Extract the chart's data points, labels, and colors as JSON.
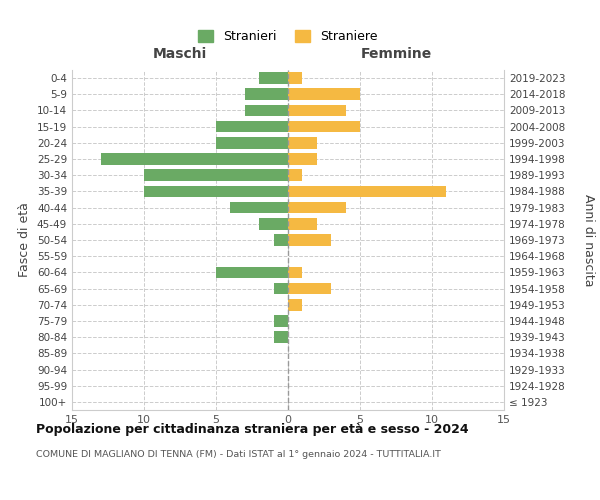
{
  "age_groups": [
    "100+",
    "95-99",
    "90-94",
    "85-89",
    "80-84",
    "75-79",
    "70-74",
    "65-69",
    "60-64",
    "55-59",
    "50-54",
    "45-49",
    "40-44",
    "35-39",
    "30-34",
    "25-29",
    "20-24",
    "15-19",
    "10-14",
    "5-9",
    "0-4"
  ],
  "birth_years": [
    "≤ 1923",
    "1924-1928",
    "1929-1933",
    "1934-1938",
    "1939-1943",
    "1944-1948",
    "1949-1953",
    "1954-1958",
    "1959-1963",
    "1964-1968",
    "1969-1973",
    "1974-1978",
    "1979-1983",
    "1984-1988",
    "1989-1993",
    "1994-1998",
    "1999-2003",
    "2004-2008",
    "2009-2013",
    "2014-2018",
    "2019-2023"
  ],
  "males": [
    0,
    0,
    0,
    0,
    1,
    1,
    0,
    1,
    5,
    0,
    1,
    2,
    4,
    10,
    10,
    13,
    5,
    5,
    3,
    3,
    2
  ],
  "females": [
    0,
    0,
    0,
    0,
    0,
    0,
    1,
    3,
    1,
    0,
    3,
    2,
    4,
    11,
    1,
    2,
    2,
    5,
    4,
    5,
    1
  ],
  "color_male": "#6aaa64",
  "color_female": "#f5b942",
  "title": "Popolazione per cittadinanza straniera per età e sesso - 2024",
  "subtitle": "COMUNE DI MAGLIANO DI TENNA (FM) - Dati ISTAT al 1° gennaio 2024 - TUTTITALIA.IT",
  "ylabel_left": "Fasce di età",
  "ylabel_right": "Anni di nascita",
  "header_left": "Maschi",
  "header_right": "Femmine",
  "legend_male": "Stranieri",
  "legend_female": "Straniere",
  "xlim": 15,
  "background_color": "#ffffff",
  "grid_color": "#cccccc"
}
